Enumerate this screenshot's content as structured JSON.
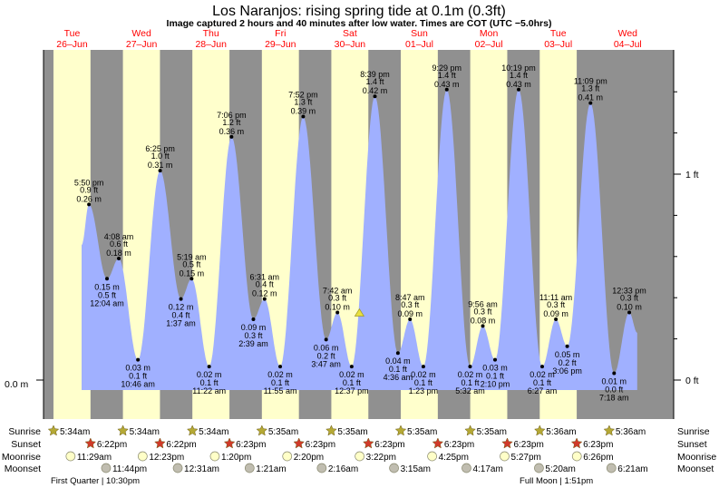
{
  "chart_data": {
    "type": "area",
    "title": "Los Naranjos: rising  spring tide at 0.1m (0.3ft)",
    "subtitle": "Image captured 2 hours and 40 minutes after low water. Times are COT (UTC −5.0hrs)",
    "days": [
      {
        "dow": "Tue",
        "date": "26–Jun"
      },
      {
        "dow": "Wed",
        "date": "27–Jun"
      },
      {
        "dow": "Thu",
        "date": "28–Jun"
      },
      {
        "dow": "Fri",
        "date": "29–Jun"
      },
      {
        "dow": "Sat",
        "date": "30–Jun"
      },
      {
        "dow": "Sun",
        "date": "01–Jul"
      },
      {
        "dow": "Mon",
        "date": "02–Jul"
      },
      {
        "dow": "Tue",
        "date": "03–Jul"
      },
      {
        "dow": "Wed",
        "date": "04–Jul"
      }
    ],
    "left_axis": {
      "label": "0.0 m",
      "unit": "m"
    },
    "right_axis": {
      "labels": [
        "1 ft",
        "0 ft"
      ],
      "unit": "ft",
      "range_ft": [
        0,
        1.4
      ]
    },
    "curve_start": {
      "d": 0,
      "time": "3:18 pm",
      "m": 0.2
    },
    "curve_end": {
      "d": 8,
      "time": "3:18 pm",
      "m": 0.07
    },
    "current": {
      "d": 4,
      "time": "3:17 pm",
      "m": 0.1
    },
    "extremes": [
      {
        "d": 0,
        "type": "high",
        "time": "5:50 pm",
        "ft": "0.9 ft",
        "m": 0.26,
        "m_label": "0.26 m"
      },
      {
        "d": 1,
        "type": "low",
        "time": "12:04 am",
        "ft": "0.5 ft",
        "m": 0.15,
        "m_label": "0.15 m"
      },
      {
        "d": 1,
        "type": "high",
        "time": "4:08 am",
        "ft": "0.6 ft",
        "m": 0.18,
        "m_label": "0.18 m"
      },
      {
        "d": 1,
        "type": "low",
        "time": "10:46 am",
        "ft": "0.1 ft",
        "m": 0.03,
        "m_label": "0.03 m"
      },
      {
        "d": 1,
        "type": "high",
        "time": "6:25 pm",
        "ft": "1.0 ft",
        "m": 0.31,
        "m_label": "0.31 m"
      },
      {
        "d": 2,
        "type": "low",
        "time": "1:37 am",
        "ft": "0.4 ft",
        "m": 0.12,
        "m_label": "0.12 m"
      },
      {
        "d": 2,
        "type": "high",
        "time": "5:19 am",
        "ft": "0.5 ft",
        "m": 0.15,
        "m_label": "0.15 m"
      },
      {
        "d": 2,
        "type": "low",
        "time": "11:22 am",
        "ft": "0.1 ft",
        "m": 0.02,
        "m_label": "0.02 m"
      },
      {
        "d": 2,
        "type": "high",
        "time": "7:06 pm",
        "ft": "1.2 ft",
        "m": 0.36,
        "m_label": "0.36 m"
      },
      {
        "d": 3,
        "type": "low",
        "time": "2:39 am",
        "ft": "0.3 ft",
        "m": 0.09,
        "m_label": "0.09 m"
      },
      {
        "d": 3,
        "type": "high",
        "time": "6:31 am",
        "ft": "0.4 ft",
        "m": 0.12,
        "m_label": "0.12 m"
      },
      {
        "d": 3,
        "type": "low",
        "time": "11:55 am",
        "ft": "0.1 ft",
        "m": 0.02,
        "m_label": "0.02 m"
      },
      {
        "d": 3,
        "type": "high",
        "time": "7:52 pm",
        "ft": "1.3 ft",
        "m": 0.39,
        "m_label": "0.39 m"
      },
      {
        "d": 4,
        "type": "low",
        "time": "3:47 am",
        "ft": "0.2 ft",
        "m": 0.06,
        "m_label": "0.06 m"
      },
      {
        "d": 4,
        "type": "high",
        "time": "7:42 am",
        "ft": "0.3 ft",
        "m": 0.1,
        "m_label": "0.10 m"
      },
      {
        "d": 4,
        "type": "low",
        "time": "12:37 pm",
        "ft": "0.1 ft",
        "m": 0.02,
        "m_label": "0.02 m"
      },
      {
        "d": 4,
        "type": "high",
        "time": "8:39 pm",
        "ft": "1.4 ft",
        "m": 0.42,
        "m_label": "0.42 m"
      },
      {
        "d": 5,
        "type": "low",
        "time": "4:36 am",
        "ft": "0.1 ft",
        "m": 0.04,
        "m_label": "0.04 m"
      },
      {
        "d": 5,
        "type": "high",
        "time": "8:47 am",
        "ft": "0.3 ft",
        "m": 0.09,
        "m_label": "0.09 m"
      },
      {
        "d": 5,
        "type": "low",
        "time": "1:23 pm",
        "ft": "0.1 ft",
        "m": 0.02,
        "m_label": "0.02 m"
      },
      {
        "d": 5,
        "type": "high",
        "time": "9:29 pm",
        "ft": "1.4 ft",
        "m": 0.43,
        "m_label": "0.43 m"
      },
      {
        "d": 6,
        "type": "low",
        "time": "5:32 am",
        "ft": "0.1 ft",
        "m": 0.02,
        "m_label": "0.02 m"
      },
      {
        "d": 6,
        "type": "high",
        "time": "9:56 am",
        "ft": "0.3 ft",
        "m": 0.08,
        "m_label": "0.08 m"
      },
      {
        "d": 6,
        "type": "low",
        "time": "2:10 pm",
        "ft": "0.1 ft",
        "m": 0.03,
        "m_label": "0.03 m"
      },
      {
        "d": 6,
        "type": "high",
        "time": "10:19 pm",
        "ft": "1.4 ft",
        "m": 0.43,
        "m_label": "0.43 m"
      },
      {
        "d": 7,
        "type": "low",
        "time": "6:27 am",
        "ft": "0.1 ft",
        "m": 0.02,
        "m_label": "0.02 m"
      },
      {
        "d": 7,
        "type": "high",
        "time": "11:11 am",
        "ft": "0.3 ft",
        "m": 0.09,
        "m_label": "0.09 m"
      },
      {
        "d": 7,
        "type": "low",
        "time": "3:06 pm",
        "ft": "0.2 ft",
        "m": 0.05,
        "m_label": "0.05 m"
      },
      {
        "d": 7,
        "type": "high",
        "time": "11:09 pm",
        "ft": "1.3 ft",
        "m": 0.41,
        "m_label": "0.41 m"
      },
      {
        "d": 8,
        "type": "low",
        "time": "7:18 am",
        "ft": "0.0 ft",
        "m": 0.01,
        "m_label": "0.01 m"
      },
      {
        "d": 8,
        "type": "high",
        "time": "12:33 pm",
        "ft": "0.3 ft",
        "m": 0.1,
        "m_label": "0.10 m"
      }
    ]
  },
  "almanac": {
    "labels": {
      "sunrise": "Sunrise",
      "sunset": "Sunset",
      "moonrise": "Moonrise",
      "moonset": "Moonset"
    },
    "colors": {
      "sunrise": "#b5a935",
      "sunset": "#d03a2a",
      "moonrise": "#ffffc8",
      "moonset": "#c0bdb0",
      "day": "#ffffcc",
      "night": "#909090",
      "water": "#a0b0ff",
      "header": "#ff0000"
    },
    "sunrise": [
      {
        "d": 0,
        "time": "5:34am"
      },
      {
        "d": 1,
        "time": "5:34am"
      },
      {
        "d": 2,
        "time": "5:34am"
      },
      {
        "d": 3,
        "time": "5:35am"
      },
      {
        "d": 4,
        "time": "5:35am"
      },
      {
        "d": 5,
        "time": "5:35am"
      },
      {
        "d": 6,
        "time": "5:35am"
      },
      {
        "d": 7,
        "time": "5:36am"
      },
      {
        "d": 8,
        "time": "5:36am"
      }
    ],
    "sunset": [
      {
        "d": 0,
        "time": "6:22pm"
      },
      {
        "d": 1,
        "time": "6:22pm"
      },
      {
        "d": 2,
        "time": "6:23pm"
      },
      {
        "d": 3,
        "time": "6:23pm"
      },
      {
        "d": 4,
        "time": "6:23pm"
      },
      {
        "d": 5,
        "time": "6:23pm"
      },
      {
        "d": 6,
        "time": "6:23pm"
      },
      {
        "d": 7,
        "time": "6:23pm"
      }
    ],
    "moonrise": [
      {
        "d": 0,
        "time": "11:29am"
      },
      {
        "d": 1,
        "time": "12:23pm"
      },
      {
        "d": 2,
        "time": "1:20pm"
      },
      {
        "d": 3,
        "time": "2:20pm"
      },
      {
        "d": 4,
        "time": "3:22pm"
      },
      {
        "d": 5,
        "time": "4:25pm"
      },
      {
        "d": 6,
        "time": "5:27pm"
      },
      {
        "d": 7,
        "time": "6:26pm"
      }
    ],
    "moonset": [
      {
        "d": 0,
        "time": "11:44pm"
      },
      {
        "d": 2,
        "time": "12:31am"
      },
      {
        "d": 3,
        "time": "1:21am"
      },
      {
        "d": 4,
        "time": "2:16am"
      },
      {
        "d": 5,
        "time": "3:15am"
      },
      {
        "d": 6,
        "time": "4:17am"
      },
      {
        "d": 7,
        "time": "5:20am"
      },
      {
        "d": 8,
        "time": "6:21am"
      }
    ],
    "moon_phases": [
      {
        "d": 0,
        "time": "10:30pm",
        "text": "First Quarter | 10:30pm"
      },
      {
        "d": 7,
        "time": "1:51pm",
        "text": "Full Moon | 1:51pm"
      }
    ]
  }
}
